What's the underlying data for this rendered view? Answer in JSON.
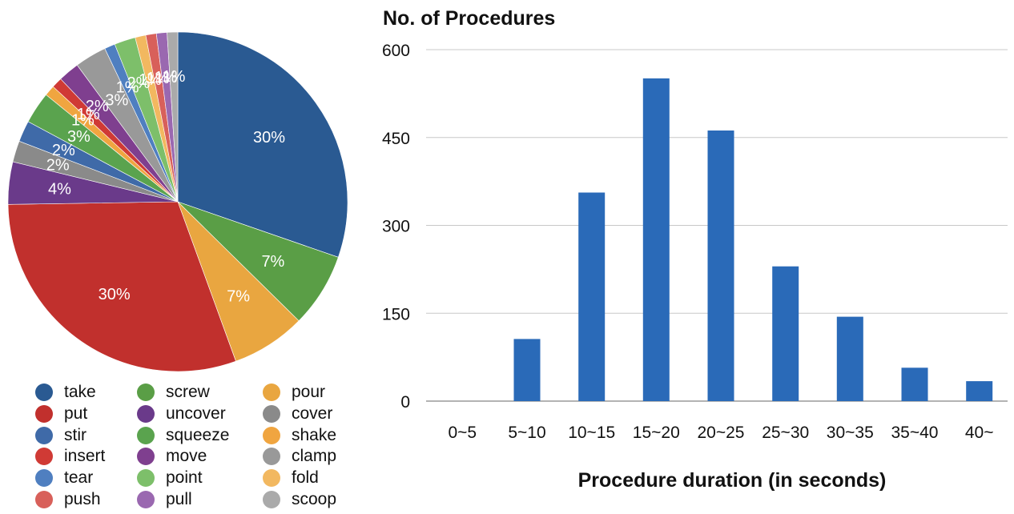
{
  "chart_data": [
    {
      "type": "pie",
      "slices": [
        {
          "label": "take",
          "value": 30,
          "color": "#2a5a92",
          "text": "30%"
        },
        {
          "label": "screw",
          "value": 7,
          "color": "#5a9e46",
          "text": "7%"
        },
        {
          "label": "pour",
          "value": 7,
          "color": "#e9a640",
          "text": "7%"
        },
        {
          "label": "put",
          "value": 30,
          "color": "#c1302d",
          "text": "30%"
        },
        {
          "label": "uncover",
          "value": 4,
          "color": "#6a3a8a",
          "text": "4%"
        },
        {
          "label": "cover",
          "value": 2,
          "color": "#8a8a8a",
          "text": "2%"
        },
        {
          "label": "stir",
          "value": 2,
          "color": "#3f6aa8",
          "text": "2%"
        },
        {
          "label": "squeeze",
          "value": 3,
          "color": "#5aa34e",
          "text": "3%"
        },
        {
          "label": "shake",
          "value": 1,
          "color": "#f0a540",
          "text": "1%"
        },
        {
          "label": "insert",
          "value": 1,
          "color": "#d03a35",
          "text": "1%"
        },
        {
          "label": "move",
          "value": 2,
          "color": "#7f3f8f",
          "text": "2%"
        },
        {
          "label": "clamp",
          "value": 3,
          "color": "#999999",
          "text": "3%"
        },
        {
          "label": "tear",
          "value": 1,
          "color": "#4f7fc0",
          "text": "1%"
        },
        {
          "label": "point",
          "value": 2,
          "color": "#7dbf6a",
          "text": "2%"
        },
        {
          "label": "fold",
          "value": 1,
          "color": "#f2b860",
          "text": "1%"
        },
        {
          "label": "push",
          "value": 1,
          "color": "#d8605a",
          "text": "1%"
        },
        {
          "label": "pull",
          "value": 1,
          "color": "#9a68b0",
          "text": "1%"
        },
        {
          "label": "scoop",
          "value": 1,
          "color": "#aaaaaa",
          "text": "1%"
        }
      ],
      "legend": {
        "placement": "bottom",
        "items": [
          {
            "label": "take",
            "color": "#2a5a92"
          },
          {
            "label": "screw",
            "color": "#5a9e46"
          },
          {
            "label": "pour",
            "color": "#e9a640"
          },
          {
            "label": "put",
            "color": "#c1302d"
          },
          {
            "label": "uncover",
            "color": "#6a3a8a"
          },
          {
            "label": "cover",
            "color": "#8a8a8a"
          },
          {
            "label": "stir",
            "color": "#3f6aa8"
          },
          {
            "label": "squeeze",
            "color": "#5aa34e"
          },
          {
            "label": "shake",
            "color": "#f0a540"
          },
          {
            "label": "insert",
            "color": "#d03a35"
          },
          {
            "label": "move",
            "color": "#7f3f8f"
          },
          {
            "label": "clamp",
            "color": "#999999"
          },
          {
            "label": "tear",
            "color": "#4f7fc0"
          },
          {
            "label": "point",
            "color": "#7dbf6a"
          },
          {
            "label": "fold",
            "color": "#f2b860"
          },
          {
            "label": "push",
            "color": "#d8605a"
          },
          {
            "label": "pull",
            "color": "#9a68b0"
          },
          {
            "label": "scoop",
            "color": "#aaaaaa"
          }
        ]
      }
    },
    {
      "type": "bar",
      "title": "No. of Procedures",
      "xlabel": "Procedure duration (in seconds)",
      "ylabel": "",
      "categories": [
        "0~5",
        "5~10",
        "10~15",
        "15~20",
        "20~25",
        "25~30",
        "30~35",
        "35~40",
        "40~"
      ],
      "values": [
        0,
        106,
        356,
        551,
        462,
        230,
        144,
        57,
        34
      ],
      "ylim": [
        0,
        600
      ],
      "yticks": [
        0,
        150,
        300,
        450,
        600
      ],
      "grid": true,
      "color": "#2a6ab8"
    }
  ]
}
